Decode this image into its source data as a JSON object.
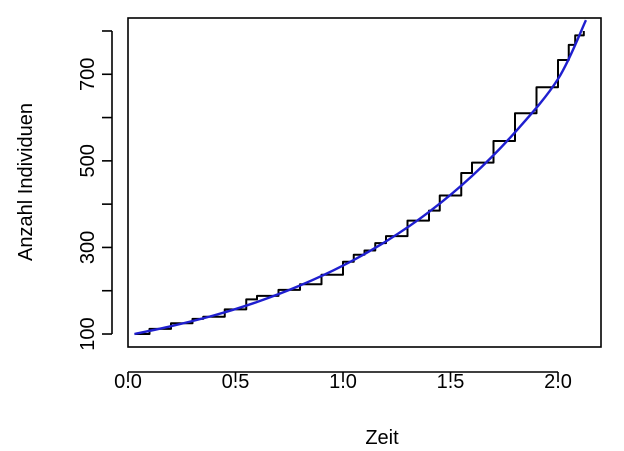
{
  "chart_data": {
    "type": "line",
    "title": "",
    "xlabel": "Zeit",
    "ylabel": "Anzahl Individuen",
    "xlim": [
      0.0,
      2.2
    ],
    "ylim": [
      70,
      830
    ],
    "x_ticks": [
      0.0,
      0.5,
      1.0,
      1.5,
      2.0
    ],
    "x_tick_labels": [
      "0.0",
      "0.5",
      "1.0",
      "1.5",
      "2.0"
    ],
    "y_ticks": [
      100,
      200,
      300,
      400,
      500,
      600,
      700,
      800
    ],
    "y_tick_labels": [
      "100",
      "",
      "300",
      "",
      "500",
      "",
      "700",
      ""
    ],
    "grid": false,
    "series": [
      {
        "color": "#000000",
        "style": "stepped-observed",
        "x": [
          0.03,
          0.1,
          0.2,
          0.3,
          0.35,
          0.45,
          0.55,
          0.6,
          0.7,
          0.8,
          0.9,
          1.0,
          1.05,
          1.1,
          1.15,
          1.2,
          1.3,
          1.4,
          1.45,
          1.55,
          1.6,
          1.7,
          1.8,
          1.9,
          2.0,
          2.05,
          2.08,
          2.12
        ],
        "values": [
          100,
          112,
          125,
          135,
          140,
          157,
          180,
          188,
          202,
          215,
          237,
          267,
          283,
          293,
          310,
          326,
          362,
          385,
          420,
          472,
          496,
          546,
          610,
          670,
          733,
          768,
          790,
          800
        ]
      },
      {
        "color": "#1f1fcf",
        "style": "smooth-model",
        "x": [
          0.03,
          0.2,
          0.4,
          0.6,
          0.8,
          1.0,
          1.2,
          1.4,
          1.6,
          1.8,
          2.0,
          2.13
        ],
        "values": [
          100,
          118,
          143,
          174,
          212,
          258,
          314,
          382,
          465,
          566,
          689,
          825
        ]
      }
    ]
  }
}
